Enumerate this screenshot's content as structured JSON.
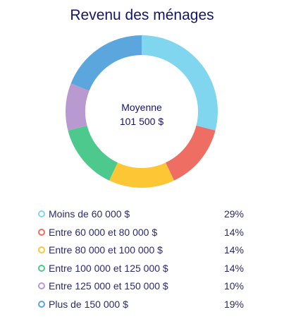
{
  "chart_data": {
    "type": "pie",
    "title": "Revenu des ménages",
    "center_label": {
      "line1": "Moyenne",
      "line2": "101 500 $"
    },
    "categories": [
      "Moins de 60 000 $",
      "Entre 60 000 et 80 000 $",
      "Entre 80 000 et 100 000 $",
      "Entre 100 000 et 125 000 $",
      "Entre 125 000 et 150 000 $",
      "Plus de 150 000 $"
    ],
    "values": [
      29,
      14,
      14,
      14,
      10,
      19
    ],
    "value_labels": [
      "29%",
      "14%",
      "14%",
      "14%",
      "10%",
      "19%"
    ],
    "colors": [
      "#7fd6ee",
      "#ee6e64",
      "#fdc634",
      "#4ec98e",
      "#b99ad0",
      "#5aa6dd"
    ],
    "legend_position": "bottom"
  }
}
